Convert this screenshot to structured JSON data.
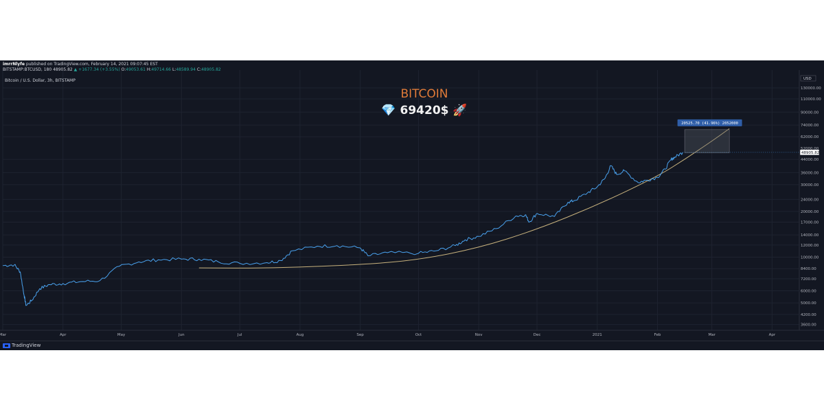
{
  "header": {
    "author": "imrrNlyfe",
    "published_text": " published on TradingView.com, February 14, 2021 09:07:45 EST",
    "symbol_line": "BITSTAMP:BTCUSD, 180  48905.82",
    "change_text": "▲ +1677.34 (+3.55%)",
    "o_label": "O:",
    "o_value": "49053.61",
    "h_label": "H:",
    "h_value": "49714.66",
    "l_label": "L:",
    "l_value": "48589.94",
    "c_label": "C:",
    "c_value": "48905.82"
  },
  "footer": {
    "brand": "TradingView"
  },
  "colors": {
    "background": "#131722",
    "grid": "#1e2330",
    "price_line": "#4aa3f0",
    "curve": "#c9b37e",
    "title": "#e07b39",
    "price_label_bg": "#ffffff",
    "measure_label_bg": "#2f5ea8"
  },
  "chart_data": {
    "type": "line",
    "title": "BITCOIN",
    "subtitle": "💎 69420$ 🚀",
    "legend_text": "Bitcoin / U.S. Dollar, 3h, BITSTAMP",
    "yscale": "log",
    "ylim": [
      3300,
      160000
    ],
    "x_range_months": [
      "2020-03-01",
      "2021-04-15"
    ],
    "axis_currency": "USD",
    "y_ticks": [
      130000,
      110000,
      90000,
      74000,
      62000,
      44000,
      36000,
      30000,
      24000,
      20000,
      17000,
      14000,
      12000,
      10000,
      8400,
      7200,
      6000,
      5000,
      4200,
      3600
    ],
    "y_tick_labels": [
      "130000.00",
      "110000.00",
      "90000.00",
      "74000.00",
      "62000.00",
      "44000.00",
      "36000.00",
      "30000.00",
      "24000.00",
      "20000.00",
      "17000.00",
      "14000.00",
      "12000.00",
      "10000.00",
      "8400.00",
      "7200.00",
      "6000.00",
      "5000.00",
      "4200.00",
      "3600.00"
    ],
    "partial_tick_label": "52000.00",
    "x_tick_labels": [
      "Mar",
      "Apr",
      "May",
      "Jun",
      "Jul",
      "Aug",
      "Sep",
      "Oct",
      "Nov",
      "Dec",
      "2021",
      "Feb",
      "Mar",
      "Apr"
    ],
    "x_tick_dates": [
      "2020-03-01",
      "2020-04-01",
      "2020-05-01",
      "2020-06-01",
      "2020-07-01",
      "2020-08-01",
      "2020-09-01",
      "2020-10-01",
      "2020-11-01",
      "2020-12-01",
      "2021-01-01",
      "2021-02-01",
      "2021-03-01",
      "2021-04-01"
    ],
    "last_price": 48905.82,
    "last_price_label": "48905.82",
    "series": [
      {
        "x": [
          "2020-03-01",
          "2020-03-07",
          "2020-03-10",
          "2020-03-12",
          "2020-03-13",
          "2020-03-16",
          "2020-03-20",
          "2020-03-25",
          "2020-04-01",
          "2020-04-10",
          "2020-04-20",
          "2020-04-30",
          "2020-05-10",
          "2020-05-20",
          "2020-06-01",
          "2020-06-10",
          "2020-06-20",
          "2020-07-01",
          "2020-07-15",
          "2020-07-22",
          "2020-07-28",
          "2020-08-10",
          "2020-08-20",
          "2020-09-01",
          "2020-09-05",
          "2020-09-15",
          "2020-10-01",
          "2020-10-10",
          "2020-10-20",
          "2020-10-25",
          "2020-11-01",
          "2020-11-10",
          "2020-11-20",
          "2020-11-25",
          "2020-11-27",
          "2020-12-01",
          "2020-12-10",
          "2020-12-17",
          "2020-12-20",
          "2020-12-27",
          "2021-01-01",
          "2021-01-05",
          "2021-01-08",
          "2021-01-11",
          "2021-01-15",
          "2021-01-22",
          "2021-01-26",
          "2021-02-01",
          "2021-02-05",
          "2021-02-08",
          "2021-02-10",
          "2021-02-14"
        ],
        "y": [
          8800,
          8900,
          8000,
          5600,
          4800,
          5200,
          6200,
          6600,
          6700,
          6900,
          7000,
          8700,
          9300,
          9600,
          9700,
          9700,
          9300,
          9100,
          9200,
          9500,
          11000,
          11800,
          11900,
          11500,
          10200,
          10700,
          10600,
          11000,
          11900,
          13000,
          13700,
          15400,
          18600,
          19000,
          17000,
          19400,
          18500,
          23000,
          23500,
          26500,
          29000,
          33000,
          40000,
          35000,
          37000,
          31000,
          32000,
          33500,
          38000,
          44000,
          45500,
          48905.82
        ]
      }
    ],
    "annotations": {
      "curve_label": "",
      "curve_points": [
        {
          "x": "2020-06-10",
          "y": 8500
        },
        {
          "x": "2020-07-15",
          "y": 8450
        },
        {
          "x": "2020-09-01",
          "y": 8900
        },
        {
          "x": "2020-10-01",
          "y": 9600
        },
        {
          "x": "2020-11-01",
          "y": 11500
        },
        {
          "x": "2020-12-01",
          "y": 15200
        },
        {
          "x": "2021-01-01",
          "y": 22000
        },
        {
          "x": "2021-02-01",
          "y": 34000
        },
        {
          "x": "2021-02-15",
          "y": 44000
        },
        {
          "x": "2021-03-01",
          "y": 58000
        },
        {
          "x": "2021-03-10",
          "y": 70000
        }
      ],
      "measure_box": {
        "x0": "2021-02-15",
        "x1": "2021-03-10",
        "y0": 48600,
        "y1": 69000
      },
      "measure_label": "20525.70 (41.96%) 2052000"
    }
  }
}
